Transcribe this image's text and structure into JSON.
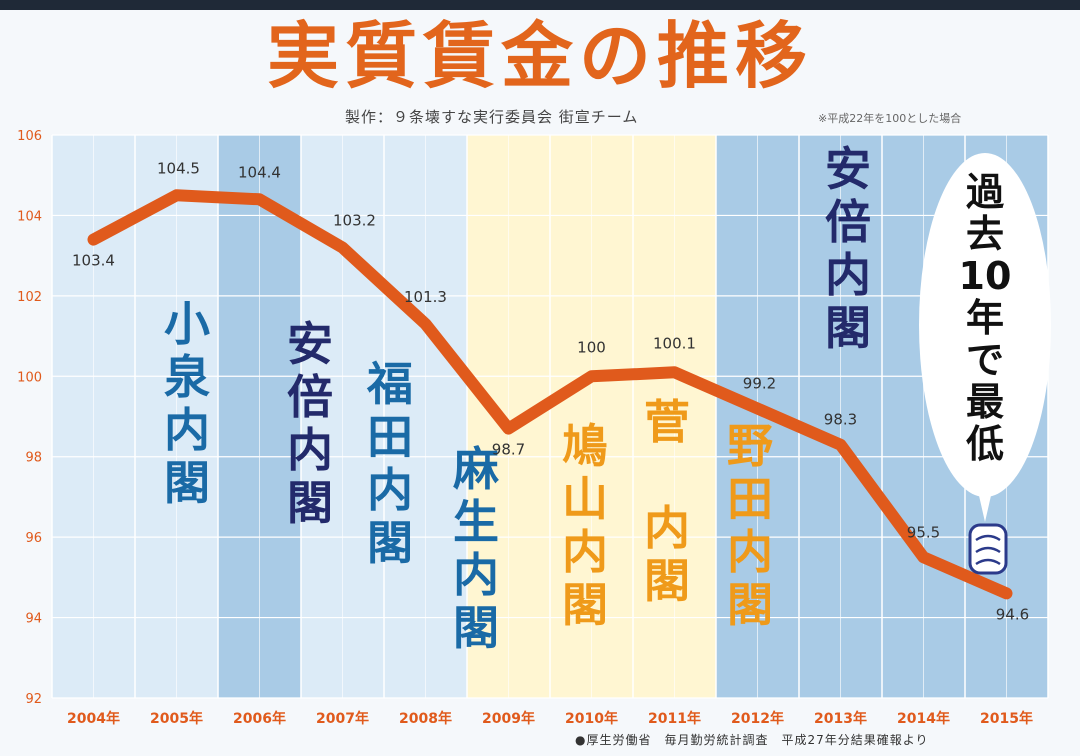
{
  "title": "実質賃金の推移",
  "credit": "製作：９条壊すな実行委員会 街宣チーム",
  "note": "※平成22年を100とした場合",
  "source": "●厚生労働省　毎月勤労統計調査　平成27年分結果確報より",
  "callout": "過去10年で最低",
  "colors": {
    "line": "#e05a1c",
    "title": "#e2651c",
    "ldp_cabinet_text": "#1a6aa6",
    "abe_cabinet_text": "#232a6b",
    "dpj_cabinet_text": "#ef9a1a",
    "light_blue_band": "#dcebf7",
    "mid_blue_band": "#a9cbe6",
    "yellow_band": "#fff6d2"
  },
  "chart_data": {
    "type": "line",
    "x": [
      "2004年",
      "2005年",
      "2006年",
      "2007年",
      "2008年",
      "2009年",
      "2010年",
      "2011年",
      "2012年",
      "2013年",
      "2014年",
      "2015年"
    ],
    "values": [
      103.4,
      104.5,
      104.4,
      103.2,
      101.3,
      98.7,
      100,
      100.1,
      99.2,
      98.3,
      95.5,
      94.6
    ],
    "data_labels": [
      "103.4",
      "104.5",
      "104.4",
      "103.2",
      "101.3",
      "98.7",
      "100",
      "100.1",
      "99.2",
      "98.3",
      "95.5",
      "94.6"
    ],
    "ylim": [
      92,
      106
    ],
    "yticks": [
      "92",
      "94",
      "96",
      "98",
      "100",
      "102",
      "104",
      "106"
    ],
    "grid": true,
    "cabinets": [
      {
        "name": "小泉内閣",
        "style": "ldp",
        "start": 2004,
        "end": 2006
      },
      {
        "name": "安倍内閣",
        "style": "abe",
        "start": 2006,
        "end": 2007
      },
      {
        "name": "福田内閣",
        "style": "ldp",
        "start": 2007,
        "end": 2008
      },
      {
        "name": "麻生内閣",
        "style": "ldp",
        "start": 2008,
        "end": 2009
      },
      {
        "name": "鳩山内閣",
        "style": "dpj",
        "start": 2009,
        "end": 2010
      },
      {
        "name": "菅 内閣",
        "style": "dpj",
        "start": 2010,
        "end": 2011
      },
      {
        "name": "野田内閣",
        "style": "dpj",
        "start": 2011,
        "end": 2012
      },
      {
        "name": "安倍内閣",
        "style": "abe",
        "start": 2012,
        "end": 2015
      }
    ]
  }
}
